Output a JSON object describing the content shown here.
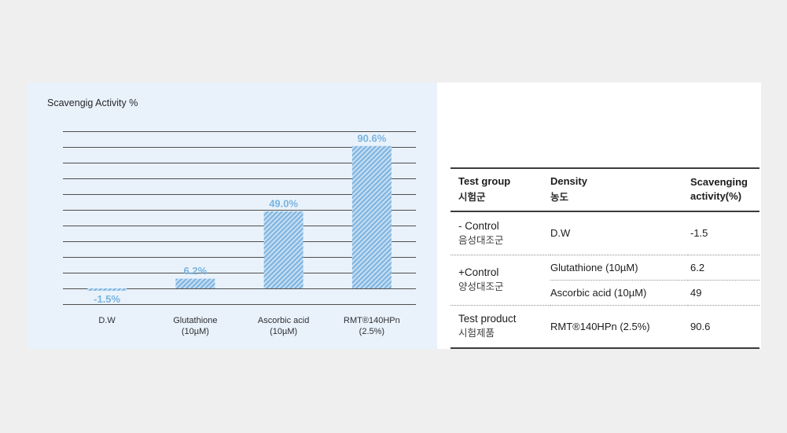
{
  "chart_data": {
    "type": "bar",
    "title": "Scavengig Activity %",
    "categories": [
      "D.W",
      "Glutathione (10µM)",
      "Ascorbic acid (10µM)",
      "RMT®140HPn (2.5%)"
    ],
    "categories_lines": [
      [
        "D.W"
      ],
      [
        "Glutathione",
        "(10µM)"
      ],
      [
        "Ascorbic acid",
        "(10µM)"
      ],
      [
        "RMT®140HPn",
        "(2.5%)"
      ]
    ],
    "values": [
      -1.5,
      6.2,
      49.0,
      90.6
    ],
    "value_labels": [
      "-1.5%",
      "6.2%",
      "49.0%",
      "90.6%"
    ],
    "ylim": [
      -10,
      100
    ],
    "gridline_step": 10,
    "grid": true,
    "legend": "none",
    "bar_color": "#82b7e2",
    "hatch_color": "rgba(255,255,255,0.6)",
    "label_color": "#79b4e1",
    "gridline_color": "#4d4d4d"
  },
  "table": {
    "headers": [
      {
        "en": "Test group",
        "ko": "시험군"
      },
      {
        "en": "Density",
        "ko": "농도"
      },
      {
        "en": "Scavenging activity(%)",
        "ko": ""
      }
    ],
    "rows": [
      {
        "group_en": "- Control",
        "group_ko": "음성대조군",
        "entries": [
          {
            "density": "D.W",
            "value": "-1.5"
          }
        ]
      },
      {
        "group_en": "+Control",
        "group_ko": "양성대조군",
        "entries": [
          {
            "density": "Glutathione (10µM)",
            "value": "6.2"
          },
          {
            "density": "Ascorbic acid (10µM)",
            "value": "49"
          }
        ]
      },
      {
        "group_en": "Test product",
        "group_ko": "시험제품",
        "entries": [
          {
            "density": "RMT®140HPn (2.5%)",
            "value": "90.6"
          }
        ]
      }
    ]
  }
}
